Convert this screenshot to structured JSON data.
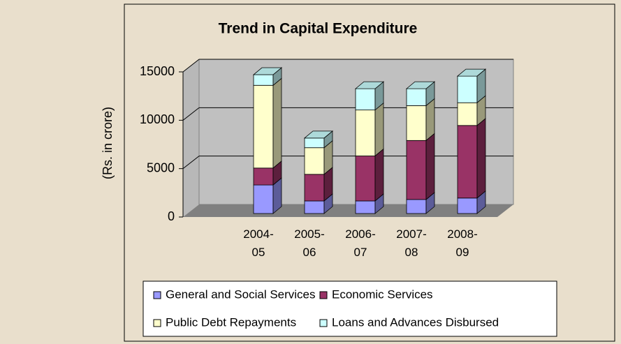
{
  "chart_data": {
    "type": "bar",
    "stacked": true,
    "title": "Trend in Capital Expenditure",
    "y_label": "(Rs. in crore)",
    "categories": [
      "2004-05",
      "2005-06",
      "2006-07",
      "2007-08",
      "2008-09"
    ],
    "series": [
      {
        "name": "General and Social Services",
        "color": "#9999ff",
        "values": [
          2950,
          1300,
          1300,
          1450,
          1600
        ]
      },
      {
        "name": "Economic Services",
        "color": "#993366",
        "values": [
          1750,
          2750,
          4650,
          6100,
          7500
        ]
      },
      {
        "name": "Public Debt Repayments",
        "color": "#ffffcc",
        "values": [
          8550,
          2750,
          4750,
          3600,
          2350
        ]
      },
      {
        "name": "Loans and Advances Disbursed",
        "color": "#ccffff",
        "values": [
          1100,
          1000,
          2200,
          1750,
          2750
        ]
      }
    ],
    "ylim": [
      0,
      15000
    ],
    "yticks": [
      0,
      5000,
      10000,
      15000
    ],
    "grid": true,
    "legend": "bottom"
  }
}
